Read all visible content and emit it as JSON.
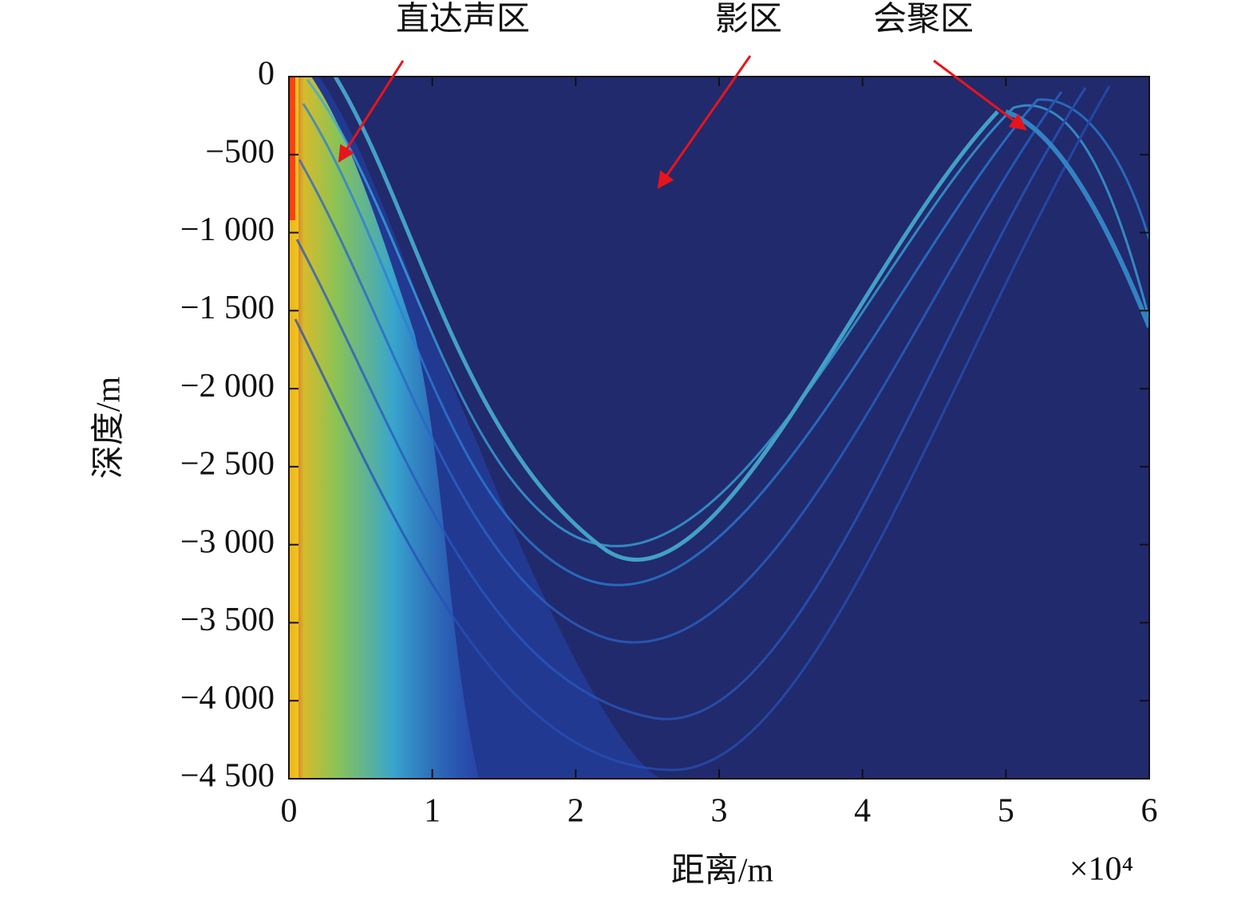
{
  "chart_data": {
    "type": "heatmap",
    "xlabel": "距离/m",
    "ylabel": "深度/m",
    "x_multiplier_label": "×10⁴",
    "xlim": [
      0,
      60000
    ],
    "ylim": [
      -4500,
      0
    ],
    "xticks": [
      0,
      {
        "value": 10000,
        "label": "1"
      },
      {
        "value": 20000,
        "label": "2"
      },
      {
        "value": 30000,
        "label": "3"
      },
      {
        "value": 40000,
        "label": "4"
      },
      {
        "value": 50000,
        "label": "5"
      },
      {
        "value": 60000,
        "label": "6"
      }
    ],
    "yticks": [
      0,
      {
        "value": -500,
        "label": "−500"
      },
      {
        "value": -1000,
        "label": "−1 000"
      },
      {
        "value": -1500,
        "label": "−1 500"
      },
      {
        "value": -2000,
        "label": "−2 000"
      },
      {
        "value": -2500,
        "label": "−2 500"
      },
      {
        "value": -3000,
        "label": "−3 000"
      },
      {
        "value": -3500,
        "label": "−3 500"
      },
      {
        "value": -4000,
        "label": "−4 000"
      },
      {
        "value": -4500,
        "label": "−4 500"
      }
    ],
    "grid": false,
    "annotations": [
      "直达声区",
      "影区",
      "会聚区"
    ],
    "annotation_color": "#e8141c"
  }
}
